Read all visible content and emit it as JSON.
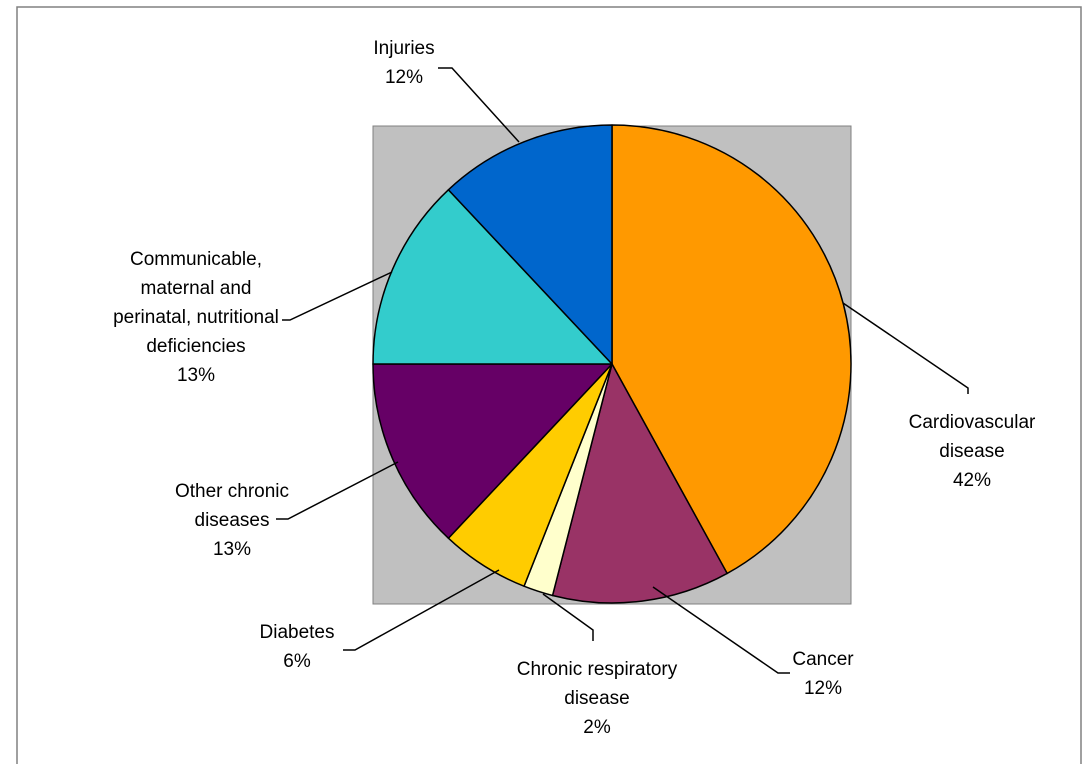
{
  "chart_data": {
    "type": "pie",
    "title": "",
    "legend": "none",
    "plot_area_color": "#c0c0c0",
    "slices": [
      {
        "label": "Cardiovascular disease",
        "value": 42,
        "value_label": "42%",
        "color": "#ff9900",
        "label_lines": [
          "Cardiovascular",
          "disease"
        ]
      },
      {
        "label": "Cancer",
        "value": 12,
        "value_label": "12%",
        "color": "#993366",
        "label_lines": [
          "Cancer"
        ]
      },
      {
        "label": "Chronic respiratory disease",
        "value": 2,
        "value_label": "2%",
        "color": "#ffffcc",
        "label_lines": [
          "Chronic respiratory",
          "disease"
        ]
      },
      {
        "label": "Diabetes",
        "value": 6,
        "value_label": "6%",
        "color": "#ffcc00",
        "label_lines": [
          "Diabetes"
        ]
      },
      {
        "label": "Other chronic diseases",
        "value": 13,
        "value_label": "13%",
        "color": "#660066",
        "label_lines": [
          "Other chronic",
          "diseases"
        ]
      },
      {
        "label": "Communicable, maternal and perinatal, nutritional deficiencies",
        "value": 13,
        "value_label": "13%",
        "color": "#33cccc",
        "label_lines": [
          "Communicable,",
          "maternal and",
          "perinatal, nutritional",
          "deficiencies"
        ]
      },
      {
        "label": "Injuries",
        "value": 12,
        "value_label": "12%",
        "color": "#0066cc",
        "label_lines": [
          "Injuries"
        ]
      }
    ]
  }
}
